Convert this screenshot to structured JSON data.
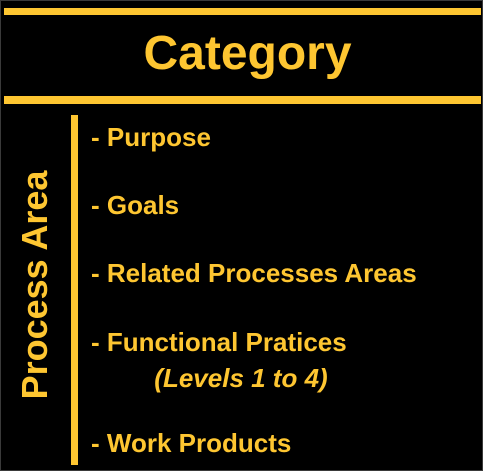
{
  "colors": {
    "accent": "#FEC631",
    "background": "#000000"
  },
  "header": {
    "title": "Category"
  },
  "sidebar": {
    "label": "Process Area"
  },
  "items": [
    {
      "label": "- Purpose"
    },
    {
      "label": "- Goals"
    },
    {
      "label": "- Related Processes Areas"
    },
    {
      "label": "- Functional Pratices"
    },
    {
      "label": "- Work Products"
    }
  ],
  "functional_practices_note": "(Levels 1 to 4)"
}
